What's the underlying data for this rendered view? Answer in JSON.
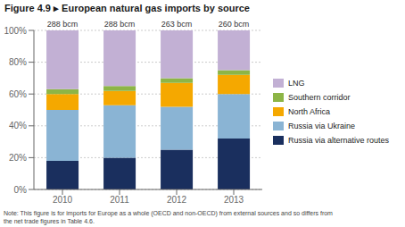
{
  "chart_data": {
    "type": "bar",
    "title": "Figure 4.9 ▸ European natural gas imports by source",
    "categories": [
      "2010",
      "2011",
      "2012",
      "2013"
    ],
    "series": [
      {
        "name": "Russia via alternative routes",
        "color": "#1a2f5e",
        "values": [
          18,
          20,
          25,
          32
        ]
      },
      {
        "name": "Russia via Ukraine",
        "color": "#8ab4d4",
        "values": [
          32,
          33,
          27,
          28
        ]
      },
      {
        "name": "North Africa",
        "color": "#f5a800",
        "values": [
          10,
          9,
          15,
          12
        ]
      },
      {
        "name": "Southern corridor",
        "color": "#8db546",
        "values": [
          3,
          3,
          3,
          3
        ]
      },
      {
        "name": "LNG",
        "color": "#c2b0d4",
        "values": [
          37,
          35,
          30,
          25
        ]
      }
    ],
    "stacked": true,
    "ylim": [
      0,
      100
    ],
    "yticks": [
      {
        "value": 0,
        "label": "0%"
      },
      {
        "value": 20,
        "label": "20%"
      },
      {
        "value": 40,
        "label": "40%"
      },
      {
        "value": 60,
        "label": "60%"
      },
      {
        "value": 80,
        "label": "80%"
      },
      {
        "value": 100,
        "label": "100%"
      }
    ],
    "grid": true,
    "legend": "right",
    "annotations": [
      {
        "x": "2010",
        "text": "288 bcm"
      },
      {
        "x": "2011",
        "text": "288 bcm"
      },
      {
        "x": "2012",
        "text": "263 bcm"
      },
      {
        "x": "2013",
        "text": "260 bcm"
      }
    ],
    "note": "Note: This figure is for imports for Europe as a whole (OECD and non-OECD) from external sources and so differs from\nthe net trade figures in Table 4.6."
  }
}
